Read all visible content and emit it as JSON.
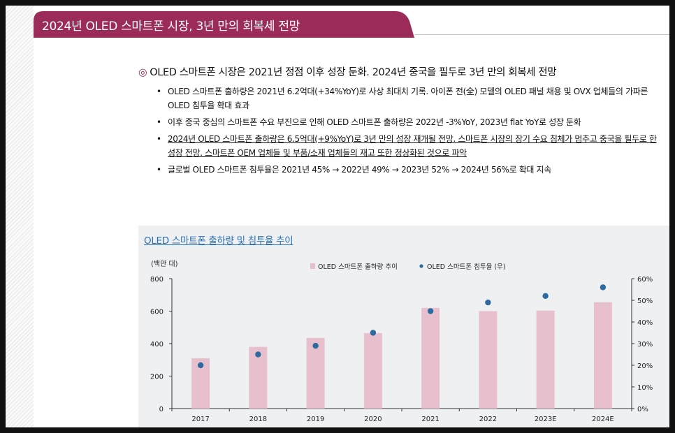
{
  "header": {
    "title": "2024년 OLED 스마트폰 시장, 3년 만의 회복세 전망"
  },
  "summary": {
    "marker": "◎",
    "headline": "OLED 스마트폰 시장은 2021년 정점 이후 성장 둔화. 2024년 중국을 필두로 3년 만의 회복세 전망",
    "bullet_symbol": "•",
    "bullets": [
      "OLED 스마트폰 출하량은 2021년 6.2억대(+34%YoY)로 사상 최대치 기록. 아이폰 전(全) 모델의 OLED 패널 채용 및 OVX 업체들의 가파른 OLED 침투율 확대 효과",
      "이후 중국 중심의 스마트폰 수요 부진으로 인해 OLED 스마트폰 출하량은 2022년 -3%YoY, 2023년 flat YoY로 성장 둔화",
      "2024년 OLED 스마트폰 출하량은 6.5억대(+9%YoY)로 3년 만의 성장 재개될 전망. 스마트폰 시장의 장기 수요 침체가 멈추고 중국을 필두로 한 성장 전망. 스마트폰 OEM 업체들 및 부품/소재 업체들의 재고 또한 정상화된 것으로 파악",
      "글로벌 OLED 스마트폰 침투율은 2021년 45% → 2022년 49% → 2023년 52% → 2024년 56%로 확대 지속"
    ]
  },
  "chart": {
    "title": "OLED 스마트폰 출하량 및 침투율 추이",
    "y_unit_label": "(백만 대)"
  },
  "chart_data": {
    "type": "bar",
    "categories": [
      "2017",
      "2018",
      "2019",
      "2020",
      "2021",
      "2022",
      "2023E",
      "2024E"
    ],
    "series": [
      {
        "name": "OLED 스마트폰 출하량 추이",
        "type": "bar",
        "axis": "left",
        "values": [
          310,
          380,
          435,
          465,
          620,
          600,
          603,
          655
        ],
        "color": "#e8bfcd"
      },
      {
        "name": "OLED 스마트폰 침투율 (우)",
        "type": "scatter",
        "axis": "right",
        "values": [
          20,
          25,
          29,
          35,
          45,
          49,
          52,
          56
        ],
        "color": "#2d6aa0"
      }
    ],
    "y_left": {
      "range": [
        0,
        800
      ],
      "ticks": [
        "0",
        "200",
        "400",
        "600",
        "800"
      ]
    },
    "y_right": {
      "range": [
        0,
        60
      ],
      "ticks": [
        "0%",
        "10%",
        "20%",
        "30%",
        "40%",
        "50%",
        "60%"
      ]
    },
    "legend_position": "top",
    "grid": false
  }
}
